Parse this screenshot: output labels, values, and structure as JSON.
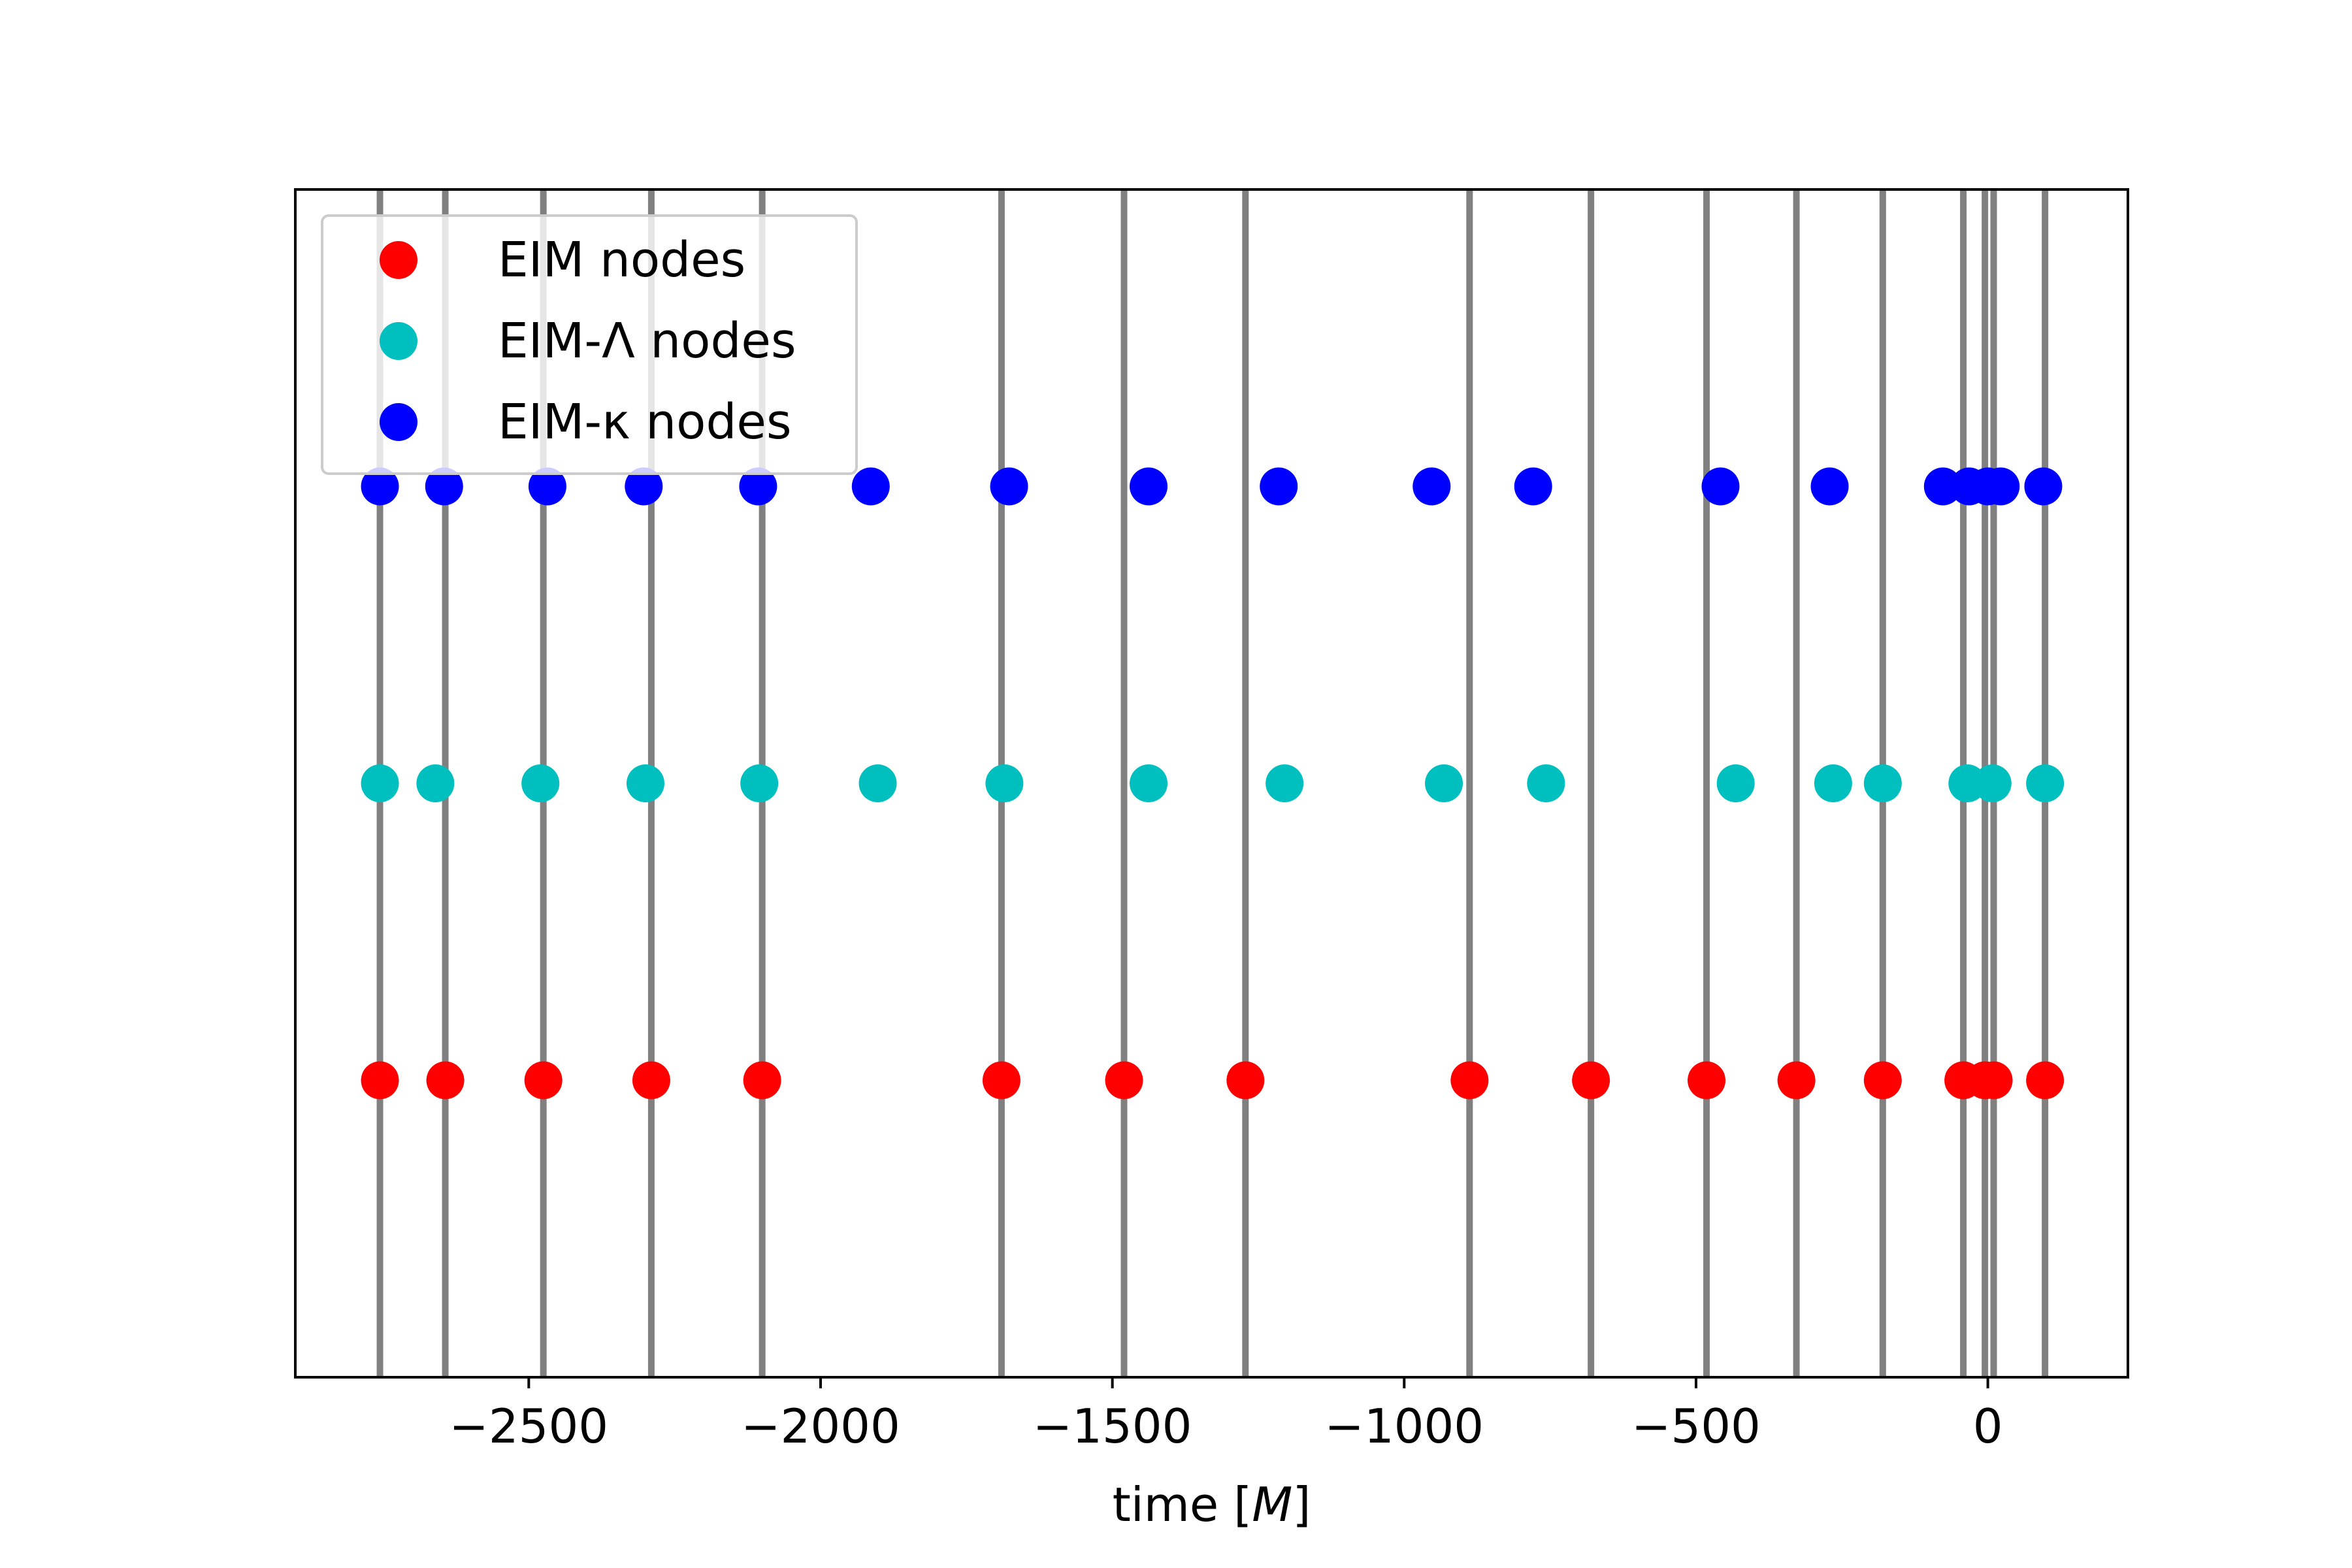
{
  "chart_data": {
    "type": "scatter",
    "title": "",
    "xlabel": "time [M]",
    "ylabel": "",
    "xlim": [
      -2900,
      240
    ],
    "ylim": [
      0,
      4
    ],
    "grid": false,
    "legend_position": "top-left",
    "x_ticks": [
      -2500,
      -2000,
      -1500,
      -1000,
      -500,
      0
    ],
    "x_tick_labels": [
      "−2500",
      "−2000",
      "−1500",
      "−1000",
      "−500",
      "0"
    ],
    "y_ticks": [],
    "vertical_lines": {
      "color": "#808080",
      "x": [
        -2755,
        -2643,
        -2475,
        -2290,
        -2100,
        -1690,
        -1480,
        -1272,
        -888,
        -680,
        -482,
        -328,
        -180,
        -42,
        -5,
        10,
        98
      ]
    },
    "series": [
      {
        "name": "EIM nodes",
        "color": "#ff0000",
        "y": 1,
        "x": [
          -2755,
          -2643,
          -2475,
          -2290,
          -2100,
          -1690,
          -1480,
          -1272,
          -888,
          -680,
          -482,
          -328,
          -180,
          -42,
          -5,
          10,
          98
        ]
      },
      {
        "name": "EIM-Λ nodes",
        "color": "#00bfbf",
        "y": 2,
        "x": [
          -2755,
          -2660,
          -2480,
          -2300,
          -2105,
          -1902,
          -1685,
          -1438,
          -1205,
          -932,
          -757,
          -432,
          -265,
          -180,
          -35,
          8,
          98
        ]
      },
      {
        "name": "EIM-κ nodes",
        "color": "#0000ff",
        "y": 3,
        "x": [
          -2755,
          -2645,
          -2468,
          -2303,
          -2107,
          -1914,
          -1677,
          -1438,
          -1215,
          -953,
          -779,
          -458,
          -271,
          -77,
          -32,
          0,
          22,
          95
        ]
      }
    ]
  },
  "legend": {
    "items": [
      {
        "label": "EIM nodes",
        "color": "#ff0000"
      },
      {
        "label": "EIM-Λ nodes",
        "color": "#00bfbf"
      },
      {
        "label": "EIM-κ nodes",
        "color": "#0000ff"
      }
    ]
  }
}
